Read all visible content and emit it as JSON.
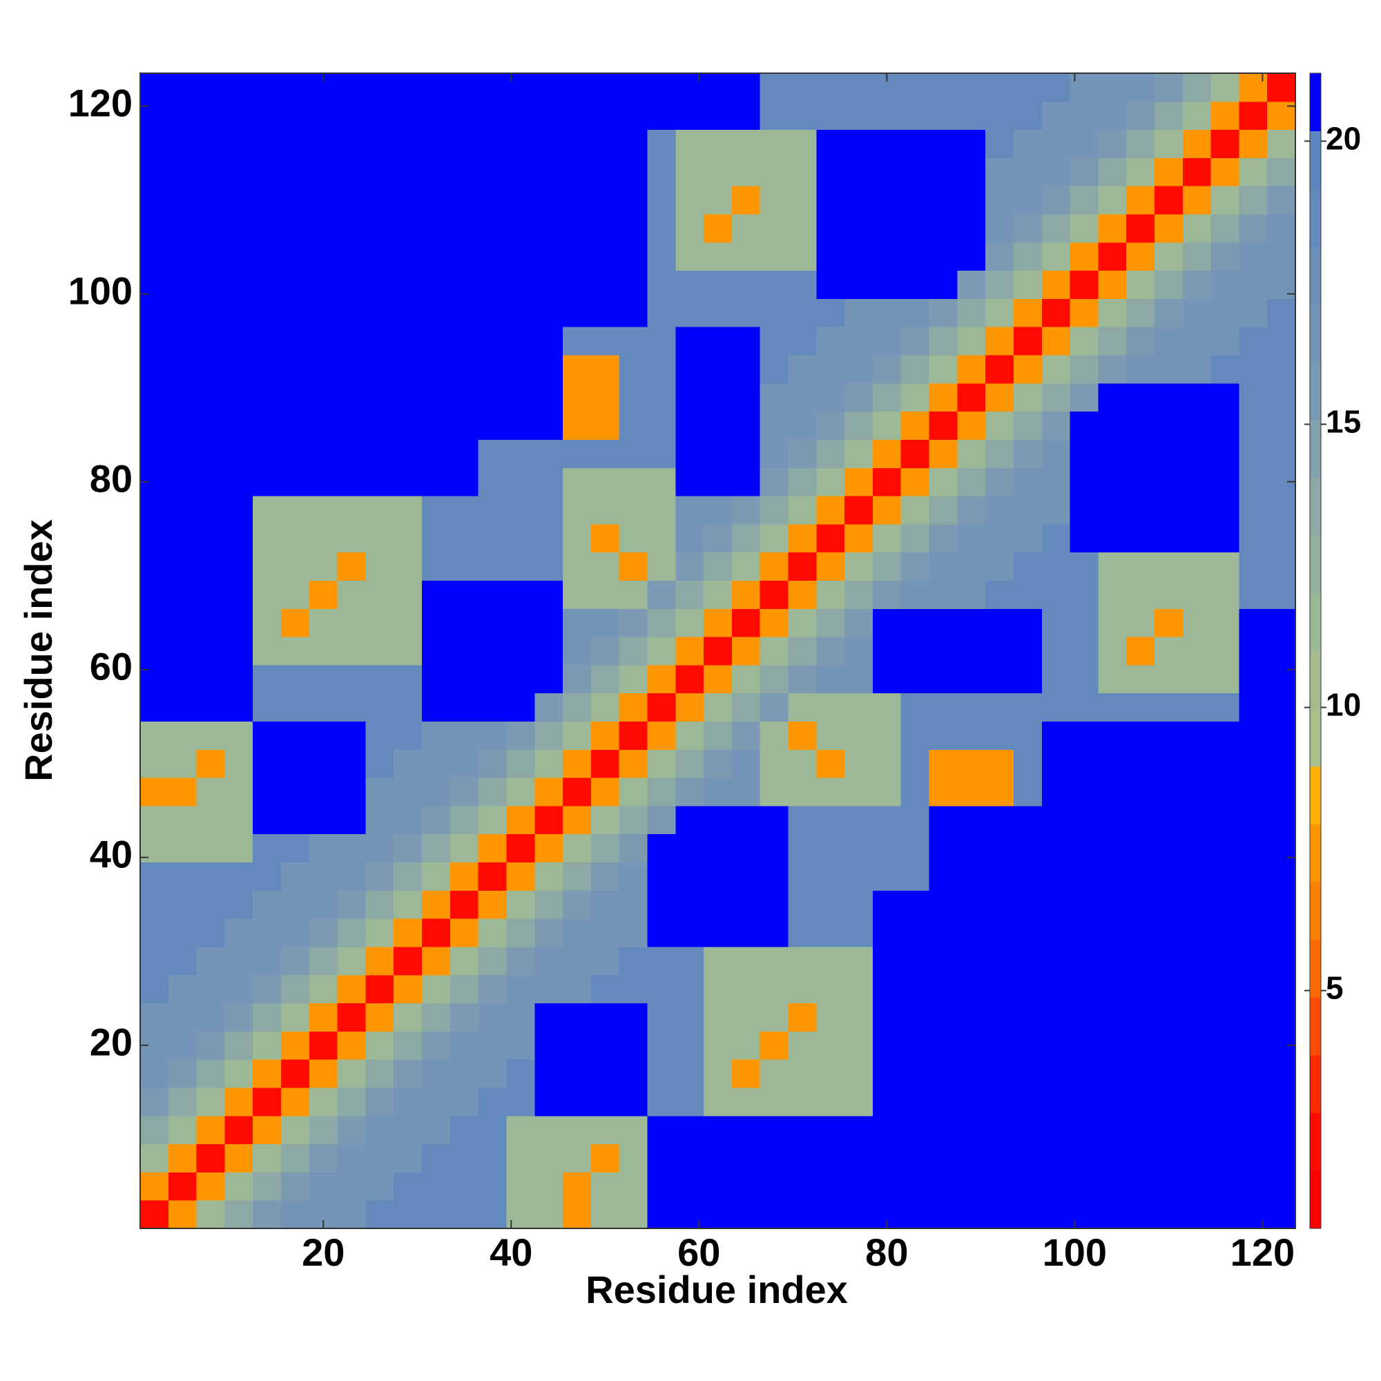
{
  "chart_data": {
    "type": "heatmap",
    "xlabel": "Residue index",
    "ylabel": "Residue index",
    "symmetric": true,
    "x": [
      2,
      5,
      8,
      11,
      14,
      17,
      20,
      23,
      26,
      29,
      32,
      35,
      38,
      41,
      44,
      47,
      50,
      53,
      56,
      59,
      62,
      65,
      68,
      71,
      74,
      77,
      80,
      83,
      86,
      89,
      92,
      95,
      98,
      101,
      104,
      107,
      110,
      113,
      116,
      119,
      122
    ],
    "y": [
      2,
      5,
      8,
      11,
      14,
      17,
      20,
      23,
      26,
      29,
      32,
      35,
      38,
      41,
      44,
      47,
      50,
      53,
      56,
      59,
      62,
      65,
      68,
      71,
      74,
      77,
      80,
      83,
      86,
      89,
      92,
      95,
      98,
      101,
      104,
      107,
      110,
      113,
      116,
      119,
      122
    ],
    "xlim": [
      0.5,
      123.5
    ],
    "xticks": [
      20,
      40,
      60,
      80,
      100,
      120
    ],
    "ylim": [
      0.5,
      123.5
    ],
    "yticks": [
      20,
      40,
      60,
      80,
      100,
      120
    ],
    "z": [
      [
        2,
        7,
        11,
        14,
        16,
        17,
        17,
        17,
        19,
        19,
        19,
        19,
        19,
        11,
        11,
        7,
        11,
        11,
        21,
        21,
        21,
        21,
        21,
        21,
        21,
        21,
        21,
        21,
        21,
        21,
        21,
        21,
        21,
        21,
        21,
        21,
        21,
        21,
        21,
        21,
        21
      ],
      [
        2,
        7,
        11,
        14,
        16,
        17,
        17,
        17,
        19,
        19,
        19,
        19,
        11,
        11,
        7,
        11,
        11,
        21,
        21,
        21,
        21,
        21,
        21,
        21,
        21,
        21,
        21,
        21,
        21,
        21,
        21,
        21,
        21,
        21,
        21,
        21,
        21,
        21,
        21,
        21
      ],
      [
        2,
        7,
        11,
        14,
        16,
        17,
        17,
        17,
        19,
        19,
        19,
        11,
        11,
        11,
        7,
        11,
        21,
        21,
        21,
        21,
        21,
        21,
        21,
        21,
        21,
        21,
        21,
        21,
        21,
        21,
        21,
        21,
        21,
        21,
        21,
        21,
        21,
        21,
        21
      ],
      [
        2,
        7,
        11,
        14,
        16,
        17,
        17,
        17,
        19,
        19,
        11,
        11,
        11,
        11,
        11,
        21,
        21,
        21,
        21,
        21,
        21,
        21,
        21,
        21,
        21,
        21,
        21,
        21,
        21,
        21,
        21,
        21,
        21,
        21,
        21,
        21,
        21,
        21
      ],
      [
        2,
        7,
        11,
        14,
        16,
        17,
        17,
        17,
        19,
        19,
        21,
        21,
        21,
        21,
        19,
        19,
        11,
        11,
        11,
        11,
        11,
        11,
        21,
        21,
        21,
        21,
        21,
        21,
        21,
        21,
        21,
        21,
        21,
        21,
        21,
        21,
        21
      ],
      [
        2,
        7,
        11,
        14,
        16,
        17,
        17,
        17,
        19,
        21,
        21,
        21,
        21,
        19,
        19,
        11,
        7,
        11,
        11,
        11,
        11,
        21,
        21,
        21,
        21,
        21,
        21,
        21,
        21,
        21,
        21,
        21,
        21,
        21,
        21,
        21
      ],
      [
        2,
        7,
        11,
        14,
        16,
        17,
        17,
        17,
        21,
        21,
        21,
        21,
        19,
        19,
        11,
        11,
        7,
        11,
        11,
        11,
        21,
        21,
        21,
        21,
        21,
        21,
        21,
        21,
        21,
        21,
        21,
        21,
        21,
        21,
        21
      ],
      [
        2,
        7,
        11,
        14,
        16,
        17,
        17,
        21,
        21,
        21,
        21,
        19,
        19,
        11,
        11,
        11,
        7,
        11,
        11,
        21,
        21,
        21,
        21,
        21,
        21,
        21,
        21,
        21,
        21,
        21,
        21,
        21,
        21,
        21
      ],
      [
        2,
        7,
        11,
        14,
        16,
        17,
        17,
        17,
        19,
        19,
        19,
        19,
        11,
        11,
        11,
        11,
        11,
        11,
        21,
        21,
        21,
        21,
        21,
        21,
        21,
        21,
        21,
        21,
        21,
        21,
        21,
        21,
        21
      ],
      [
        2,
        7,
        11,
        14,
        16,
        17,
        17,
        17,
        19,
        19,
        19,
        11,
        11,
        11,
        11,
        11,
        11,
        21,
        21,
        21,
        21,
        21,
        21,
        21,
        21,
        21,
        21,
        21,
        21,
        21,
        21,
        21
      ],
      [
        2,
        7,
        11,
        14,
        16,
        17,
        17,
        17,
        21,
        21,
        21,
        21,
        21,
        19,
        19,
        19,
        21,
        21,
        21,
        21,
        21,
        21,
        21,
        21,
        21,
        21,
        21,
        21,
        21,
        21,
        21
      ],
      [
        2,
        7,
        11,
        14,
        16,
        17,
        17,
        21,
        21,
        21,
        21,
        21,
        19,
        19,
        19,
        21,
        21,
        21,
        21,
        21,
        21,
        21,
        21,
        21,
        21,
        21,
        21,
        21,
        21,
        21
      ],
      [
        2,
        7,
        11,
        14,
        16,
        17,
        21,
        21,
        21,
        21,
        21,
        19,
        19,
        19,
        19,
        19,
        21,
        21,
        21,
        21,
        21,
        21,
        21,
        21,
        21,
        21,
        21,
        21,
        21
      ],
      [
        2,
        7,
        11,
        14,
        16,
        21,
        21,
        21,
        21,
        21,
        19,
        19,
        19,
        19,
        19,
        21,
        21,
        21,
        21,
        21,
        21,
        21,
        21,
        21,
        21,
        21,
        21,
        21
      ],
      [
        2,
        7,
        11,
        14,
        16,
        21,
        21,
        21,
        21,
        19,
        19,
        19,
        19,
        19,
        21,
        21,
        21,
        21,
        21,
        21,
        21,
        21,
        21,
        21,
        21,
        21,
        21
      ],
      [
        2,
        7,
        11,
        14,
        16,
        17,
        17,
        11,
        11,
        11,
        11,
        11,
        19,
        7,
        7,
        7,
        19,
        21,
        21,
        21,
        21,
        21,
        21,
        21,
        21,
        21
      ],
      [
        2,
        7,
        11,
        14,
        16,
        17,
        11,
        11,
        7,
        11,
        11,
        19,
        7,
        7,
        7,
        19,
        21,
        21,
        21,
        21,
        21,
        21,
        21,
        21,
        21
      ],
      [
        2,
        7,
        11,
        14,
        16,
        11,
        7,
        11,
        11,
        11,
        19,
        19,
        19,
        19,
        19,
        21,
        21,
        21,
        21,
        21,
        21,
        21,
        21,
        21
      ],
      [
        2,
        7,
        11,
        14,
        16,
        11,
        11,
        11,
        11,
        19,
        19,
        19,
        19,
        19,
        19,
        19,
        19,
        19,
        19,
        19,
        19,
        21,
        21
      ],
      [
        2,
        7,
        11,
        14,
        16,
        17,
        17,
        21,
        21,
        21,
        21,
        21,
        21,
        19,
        19,
        11,
        11,
        11,
        11,
        11,
        21,
        21
      ],
      [
        2,
        7,
        11,
        14,
        16,
        17,
        21,
        21,
        21,
        21,
        21,
        21,
        19,
        19,
        11,
        7,
        11,
        11,
        11,
        21,
        21
      ],
      [
        2,
        7,
        11,
        14,
        16,
        21,
        21,
        21,
        21,
        21,
        21,
        19,
        19,
        11,
        11,
        7,
        11,
        11,
        21,
        21
      ],
      [
        2,
        7,
        11,
        14,
        16,
        17,
        17,
        17,
        19,
        19,
        19,
        19,
        11,
        11,
        11,
        11,
        11,
        19,
        19
      ],
      [
        2,
        7,
        11,
        14,
        16,
        17,
        17,
        17,
        19,
        19,
        19,
        11,
        11,
        11,
        11,
        11,
        19,
        19
      ],
      [
        2,
        7,
        11,
        14,
        16,
        17,
        17,
        17,
        19,
        21,
        21,
        21,
        21,
        21,
        21,
        19,
        19
      ],
      [
        2,
        7,
        11,
        14,
        16,
        17,
        17,
        17,
        21,
        21,
        21,
        21,
        21,
        21,
        19,
        19
      ],
      [
        2,
        7,
        11,
        14,
        16,
        17,
        17,
        21,
        21,
        21,
        21,
        21,
        21,
        19,
        19
      ],
      [
        2,
        7,
        11,
        14,
        16,
        17,
        21,
        21,
        21,
        21,
        21,
        21,
        19,
        19
      ],
      [
        2,
        7,
        11,
        14,
        16,
        21,
        21,
        21,
        21,
        21,
        21,
        19,
        19
      ],
      [
        2,
        7,
        11,
        14,
        16,
        21,
        21,
        21,
        21,
        21,
        19,
        19
      ],
      [
        2,
        7,
        11,
        14,
        16,
        17,
        17,
        17,
        19,
        19,
        19
      ],
      [
        2,
        7,
        11,
        14,
        16,
        17,
        17,
        17,
        19,
        19
      ],
      [
        2,
        7,
        11,
        14,
        16,
        17,
        17,
        17,
        19
      ],
      [
        2,
        7,
        11,
        14,
        16,
        17,
        17,
        17
      ],
      [
        2,
        7,
        11,
        14,
        16,
        17,
        17
      ],
      [
        2,
        7,
        11,
        14,
        16,
        17
      ],
      [
        2,
        7,
        11,
        14,
        16
      ],
      [
        2,
        7,
        11,
        14
      ],
      [
        2,
        7,
        11
      ],
      [
        2,
        7
      ],
      [
        2
      ]
    ],
    "colorbar": {
      "lim": [
        0.8,
        21.2
      ],
      "ticks": [
        5,
        10,
        15,
        20
      ],
      "colors": [
        "#ff0000",
        "#ff0a00",
        "#ff2a00",
        "#ff4a00",
        "#ff6a00",
        "#ff8000",
        "#ff9500",
        "#ffb000",
        "#a9c08c",
        "#a3bd90",
        "#9db896",
        "#95b09e",
        "#8ca9a6",
        "#84a2ae",
        "#7c9bb3",
        "#7494b8",
        "#6c8ebb",
        "#648abd",
        "#5c86bf",
        "#0000ff"
      ]
    }
  }
}
